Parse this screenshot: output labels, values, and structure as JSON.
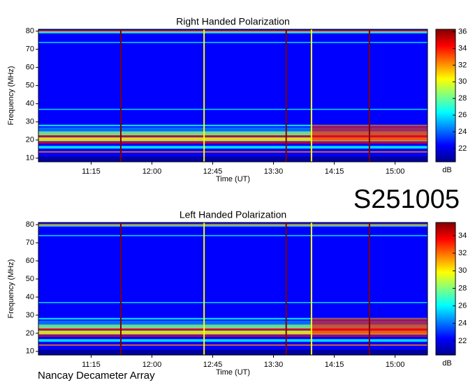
{
  "chart_data": [
    {
      "type": "heatmap",
      "title": "Right Handed Polarization",
      "x_label": "Time (UT)",
      "y_label": "Frequency (MHz)",
      "colorbar_label": "dB",
      "xlim": [
        "10:36",
        "15:24"
      ],
      "xticks": [
        "11:15",
        "12:00",
        "12:45",
        "13:30",
        "14:15",
        "15:00"
      ],
      "ylim": [
        8,
        81
      ],
      "yticks": [
        10,
        20,
        30,
        40,
        50,
        60,
        70,
        80
      ],
      "clim": [
        20.4,
        36.3
      ],
      "cticks": [
        22,
        24,
        26,
        28,
        30,
        32,
        34,
        36
      ],
      "colormap": [
        "#00008f",
        "#0000ff",
        "#0080ff",
        "#00ffff",
        "#80ff80",
        "#ffff00",
        "#ff8000",
        "#ff0000",
        "#800000"
      ]
    },
    {
      "type": "heatmap",
      "title": "Left Handed Polarization",
      "x_label": "Time (UT)",
      "y_label": "Frequency (MHz)",
      "colorbar_label": "dB",
      "xlim": [
        "10:36",
        "15:24"
      ],
      "xticks": [
        "11:15",
        "12:00",
        "12:45",
        "13:30",
        "14:15",
        "15:00"
      ],
      "ylim": [
        8,
        81.2
      ],
      "yticks": [
        10,
        20,
        30,
        40,
        50,
        60,
        70,
        80
      ],
      "clim": [
        20.4,
        35.5
      ],
      "cticks": [
        22,
        24,
        26,
        28,
        30,
        32,
        34
      ],
      "colormap": [
        "#00008f",
        "#0000ff",
        "#0080ff",
        "#00ffff",
        "#80ff80",
        "#ffff00",
        "#ff8000",
        "#ff0000",
        "#800000"
      ]
    }
  ],
  "event_id": "S251005",
  "observatory": "Nancay Decameter Array"
}
